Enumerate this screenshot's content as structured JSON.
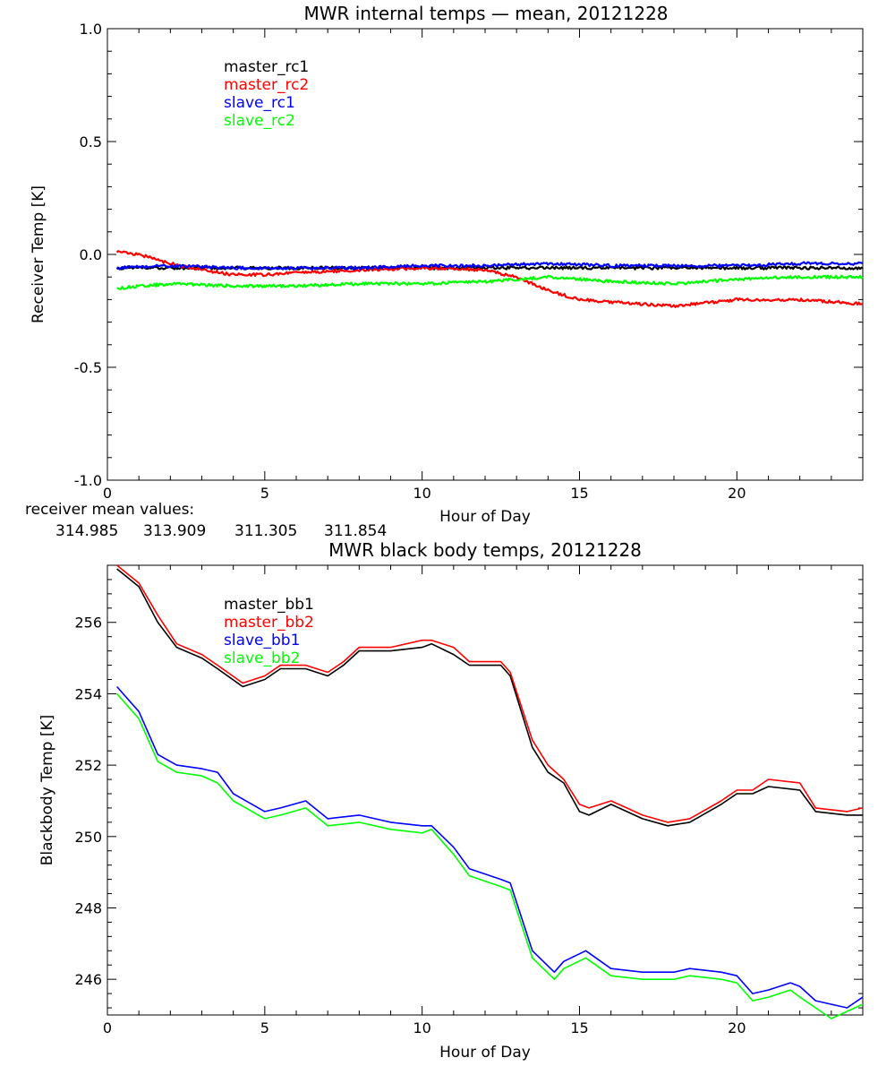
{
  "chart_data": [
    {
      "type": "line",
      "title": "MWR internal temps — mean, 20121228",
      "xlabel": "Hour of Day",
      "ylabel": "Receiver Temp [K]",
      "xlim": [
        0,
        24
      ],
      "ylim": [
        -1.0,
        1.0
      ],
      "x_ticks": [
        0,
        5,
        10,
        15,
        20
      ],
      "x_tick_labels": [
        "0",
        "5",
        "10",
        "15",
        "20"
      ],
      "y_ticks": [
        -1.0,
        -0.5,
        0.0,
        0.5,
        1.0
      ],
      "y_tick_labels": [
        "-1.0",
        "-0.5",
        "0.0",
        "0.5",
        "1.0"
      ],
      "legend_position": "top-left",
      "series": [
        {
          "name": "master_rc1",
          "color": "#000000",
          "x": [
            0.3,
            2,
            4,
            6,
            8,
            10,
            12,
            14,
            16,
            18,
            20,
            22,
            24
          ],
          "values": [
            -0.06,
            -0.06,
            -0.06,
            -0.06,
            -0.06,
            -0.06,
            -0.06,
            -0.06,
            -0.06,
            -0.06,
            -0.06,
            -0.06,
            -0.06
          ]
        },
        {
          "name": "master_rc2",
          "color": "#ff0000",
          "x": [
            0.3,
            1,
            2,
            3,
            4,
            5,
            6,
            8,
            10,
            12,
            13,
            14,
            15,
            16,
            18,
            20,
            22,
            24
          ],
          "values": [
            0.01,
            0.0,
            -0.04,
            -0.07,
            -0.09,
            -0.09,
            -0.08,
            -0.07,
            -0.06,
            -0.07,
            -0.1,
            -0.16,
            -0.2,
            -0.21,
            -0.23,
            -0.2,
            -0.2,
            -0.22
          ]
        },
        {
          "name": "slave_rc1",
          "color": "#0000ff",
          "x": [
            0.3,
            2,
            4,
            6,
            8,
            10,
            12,
            14,
            16,
            18,
            20,
            22,
            24
          ],
          "values": [
            -0.06,
            -0.05,
            -0.06,
            -0.06,
            -0.06,
            -0.05,
            -0.05,
            -0.04,
            -0.05,
            -0.05,
            -0.05,
            -0.04,
            -0.04
          ]
        },
        {
          "name": "slave_rc2",
          "color": "#00ff00",
          "x": [
            0.3,
            2,
            4,
            6,
            8,
            10,
            12,
            14,
            16,
            18,
            20,
            22,
            24
          ],
          "values": [
            -0.15,
            -0.13,
            -0.14,
            -0.14,
            -0.13,
            -0.13,
            -0.12,
            -0.1,
            -0.12,
            -0.13,
            -0.11,
            -0.1,
            -0.1
          ]
        }
      ],
      "mean_values_label": "receiver mean values:",
      "mean_values": [
        {
          "value": "314.985",
          "color": "#000000"
        },
        {
          "value": "313.909",
          "color": "#ff0000"
        },
        {
          "value": "311.305",
          "color": "#0000ff"
        },
        {
          "value": "311.854",
          "color": "#00ff00"
        }
      ]
    },
    {
      "type": "line",
      "title": "MWR black body temps, 20121228",
      "xlabel": "Hour of Day",
      "ylabel": "Blackbody Temp [K]",
      "xlim": [
        0,
        24
      ],
      "ylim": [
        245.0,
        257.6
      ],
      "x_ticks": [
        0,
        5,
        10,
        15,
        20
      ],
      "x_tick_labels": [
        "0",
        "5",
        "10",
        "15",
        "20"
      ],
      "y_ticks": [
        246,
        248,
        250,
        252,
        254,
        256
      ],
      "y_tick_labels": [
        "246",
        "248",
        "250",
        "252",
        "254",
        "256"
      ],
      "legend_position": "top-left",
      "series": [
        {
          "name": "master_bb1",
          "color": "#000000",
          "x": [
            0.3,
            1,
            1.6,
            2.2,
            3,
            3.5,
            4.3,
            5,
            5.5,
            6.3,
            7,
            7.5,
            8,
            9,
            10,
            10.3,
            11,
            11.5,
            12.5,
            12.8,
            13.5,
            14,
            14.5,
            15,
            15.3,
            16,
            16.5,
            17,
            17.8,
            18.5,
            19.5,
            20,
            20.5,
            21,
            22,
            22.5,
            23.5,
            24
          ],
          "values": [
            257.5,
            257.0,
            256.0,
            255.3,
            255.0,
            254.7,
            254.2,
            254.4,
            254.7,
            254.7,
            254.5,
            254.8,
            255.2,
            255.2,
            255.3,
            255.4,
            255.1,
            254.8,
            254.8,
            254.5,
            252.5,
            251.8,
            251.5,
            250.7,
            250.6,
            250.9,
            250.7,
            250.5,
            250.3,
            250.4,
            250.9,
            251.2,
            251.2,
            251.4,
            251.3,
            250.7,
            250.6,
            250.6
          ]
        },
        {
          "name": "master_bb2",
          "color": "#ff0000",
          "x": [
            0.3,
            1,
            1.6,
            2.2,
            3,
            3.5,
            4.3,
            5,
            5.5,
            6.3,
            7,
            7.5,
            8,
            9,
            10,
            10.3,
            11,
            11.5,
            12.5,
            12.8,
            13.5,
            14,
            14.5,
            15,
            15.3,
            16,
            16.5,
            17,
            17.8,
            18.5,
            19.5,
            20,
            20.5,
            21,
            22,
            22.5,
            23.5,
            24
          ],
          "values": [
            257.6,
            257.1,
            256.2,
            255.4,
            255.1,
            254.8,
            254.3,
            254.5,
            254.8,
            254.8,
            254.6,
            254.9,
            255.3,
            255.3,
            255.5,
            255.5,
            255.3,
            254.9,
            254.9,
            254.6,
            252.7,
            252.0,
            251.6,
            250.9,
            250.8,
            251.0,
            250.8,
            250.6,
            250.4,
            250.5,
            251.0,
            251.3,
            251.3,
            251.6,
            251.5,
            250.8,
            250.7,
            250.8
          ]
        },
        {
          "name": "slave_bb1",
          "color": "#0000ff",
          "x": [
            0.3,
            1,
            1.6,
            2.2,
            3,
            3.5,
            4,
            5,
            5.5,
            6.3,
            7,
            8,
            9,
            10,
            10.3,
            11,
            11.5,
            12.5,
            12.8,
            13.5,
            14.2,
            14.5,
            15.2,
            16,
            17,
            18,
            18.5,
            19.5,
            20,
            20.5,
            21,
            21.7,
            22,
            22.5,
            23.5,
            24
          ],
          "values": [
            254.2,
            253.5,
            252.3,
            252.0,
            251.9,
            251.8,
            251.2,
            250.7,
            250.8,
            251.0,
            250.5,
            250.6,
            250.4,
            250.3,
            250.3,
            249.7,
            249.1,
            248.8,
            248.7,
            246.8,
            246.2,
            246.5,
            246.8,
            246.3,
            246.2,
            246.2,
            246.3,
            246.2,
            246.1,
            245.6,
            245.7,
            245.9,
            245.8,
            245.4,
            245.2,
            245.5
          ]
        },
        {
          "name": "slave_bb2",
          "color": "#00ff00",
          "x": [
            0.3,
            1,
            1.6,
            2.2,
            3,
            3.5,
            4,
            5,
            5.5,
            6.3,
            7,
            8,
            9,
            10,
            10.3,
            11,
            11.5,
            12.5,
            12.8,
            13.5,
            14.2,
            14.5,
            15.2,
            16,
            17,
            18,
            18.5,
            19.5,
            20,
            20.5,
            21,
            21.7,
            22,
            22.5,
            23,
            24
          ],
          "values": [
            254.0,
            253.3,
            252.1,
            251.8,
            251.7,
            251.5,
            251.0,
            250.5,
            250.6,
            250.8,
            250.3,
            250.4,
            250.2,
            250.1,
            250.2,
            249.5,
            248.9,
            248.6,
            248.5,
            246.6,
            246.0,
            246.3,
            246.6,
            246.1,
            246.0,
            246.0,
            246.1,
            246.0,
            245.9,
            245.4,
            245.5,
            245.7,
            245.5,
            245.2,
            244.9,
            245.3
          ]
        }
      ]
    }
  ]
}
